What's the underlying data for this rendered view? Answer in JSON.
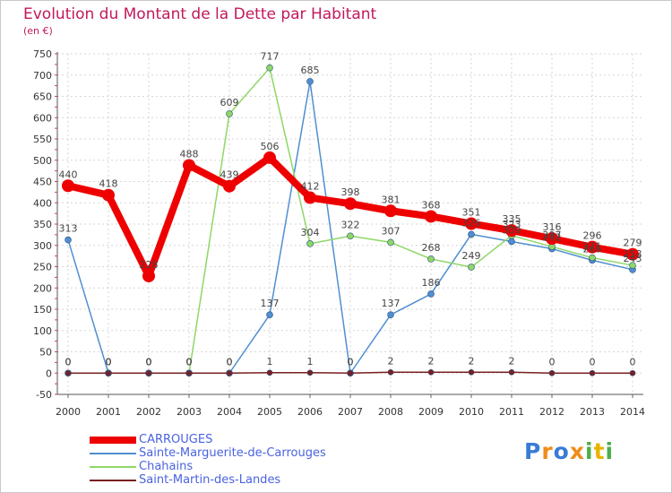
{
  "chart_data": {
    "type": "line",
    "title": "Evolution du Montant de la Dette par Habitant",
    "subtitle": "(en €)",
    "x": [
      "2000",
      "2001",
      "2002",
      "2003",
      "2004",
      "2005",
      "2006",
      "2007",
      "2008",
      "2009",
      "2010",
      "2011",
      "2012",
      "2013",
      "2014"
    ],
    "ylim": [
      -50,
      750
    ],
    "yticks": [
      -50,
      0,
      50,
      100,
      150,
      200,
      250,
      300,
      350,
      400,
      450,
      500,
      550,
      600,
      650,
      700,
      750
    ],
    "grid": true,
    "legend_position": "bottom-left",
    "series": [
      {
        "name": "Sainte-Marguerite-de-Carrouges",
        "color": "#4f8fd0",
        "values": [
          313,
          0,
          0,
          0,
          0,
          137,
          685,
          0,
          137,
          186,
          326,
          309,
          292,
          265,
          243
        ],
        "labels": [
          "313",
          "0",
          "0",
          "0",
          "0",
          "137",
          "685",
          "0",
          "137",
          "186",
          "326",
          "309",
          "292",
          "265",
          "243"
        ]
      },
      {
        "name": "Chahains",
        "color": "#8ed766",
        "values": [
          0,
          0,
          0,
          0,
          609,
          717,
          304,
          322,
          307,
          268,
          249,
          323,
          297,
          271,
          253
        ],
        "labels": [
          "0",
          "0",
          "0",
          "0",
          "609",
          "717",
          "304",
          "322",
          "307",
          "268",
          "249",
          "323",
          "297",
          "271",
          "253"
        ]
      },
      {
        "name": "Saint-Martin-des-Landes",
        "color": "#7a2020",
        "values": [
          0,
          0,
          0,
          0,
          0,
          1,
          1,
          0,
          2,
          2,
          2,
          2,
          0,
          0,
          0
        ],
        "labels": [
          "0",
          "0",
          "0",
          "0",
          "0",
          "1",
          "1",
          "0",
          "2",
          "2",
          "2",
          "2",
          "0",
          "0",
          "0"
        ]
      },
      {
        "name": "CARROUGES",
        "color": "#ee0000",
        "values": [
          440,
          418,
          228,
          488,
          439,
          506,
          412,
          398,
          381,
          368,
          351,
          335,
          316,
          296,
          279
        ],
        "labels": [
          "440",
          "418",
          "228",
          "488",
          "439",
          "506",
          "412",
          "398",
          "381",
          "368",
          "351",
          "335",
          "316",
          "296",
          "279"
        ]
      }
    ],
    "legend": [
      {
        "name": "CARROUGES",
        "color": "#ee0000"
      },
      {
        "name": "Sainte-Marguerite-de-Carrouges",
        "color": "#4f8fd0"
      },
      {
        "name": "Chahains",
        "color": "#8ed766"
      },
      {
        "name": "Saint-Martin-des-Landes",
        "color": "#7a2020"
      }
    ]
  },
  "brand": {
    "letters": [
      "P",
      "r",
      "o",
      "x",
      "i",
      "t",
      "i"
    ],
    "colors": [
      "#3a7bd5",
      "#f08c1a",
      "#3a7bd5",
      "#f08c1a",
      "#4cae4c",
      "#e8b400",
      "#4cae4c"
    ]
  }
}
